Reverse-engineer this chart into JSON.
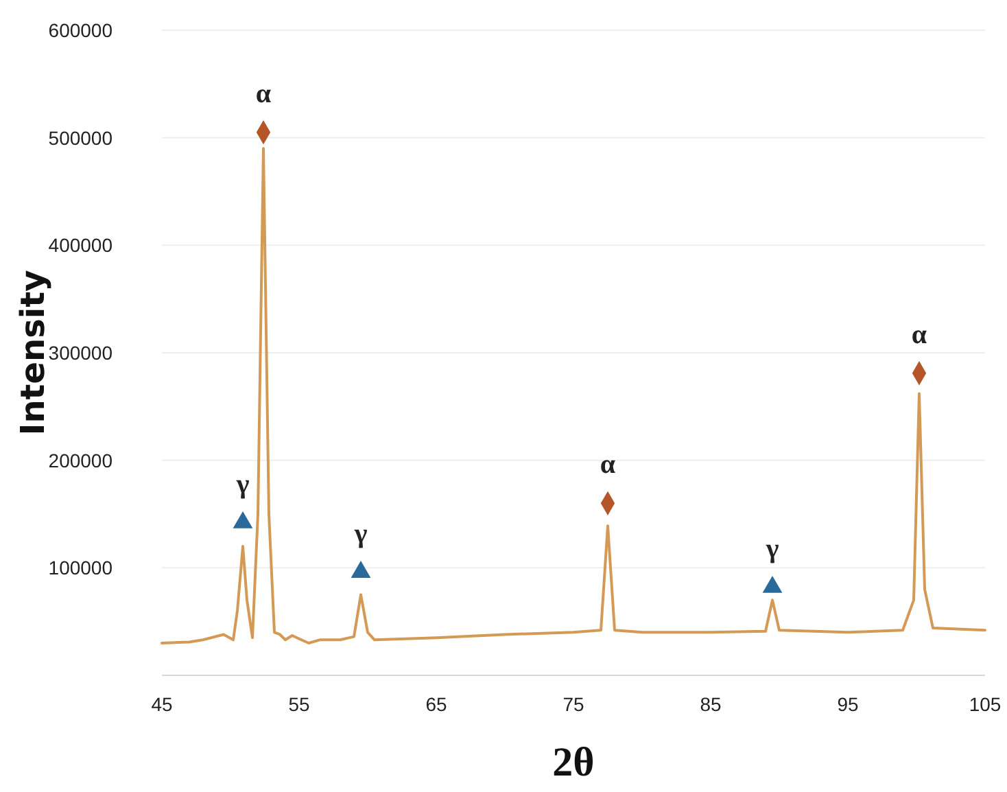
{
  "chart_data": {
    "type": "line",
    "xlabel": "2θ",
    "ylabel": "Intensity",
    "xlim": [
      45,
      105
    ],
    "xticks": [
      45,
      55,
      65,
      75,
      85,
      95,
      105
    ],
    "ylim": [
      0,
      600000
    ],
    "yticks": [
      100000,
      200000,
      300000,
      400000,
      500000,
      600000
    ],
    "grid": "y",
    "marker": "none",
    "line_style": "solid",
    "series": [
      {
        "color": "#d49a55",
        "x": [
          45,
          47,
          48,
          49.5,
          50.2,
          50.5,
          50.9,
          51.2,
          51.6,
          52,
          52.4,
          52.8,
          53.2,
          53.6,
          54,
          54.5,
          55,
          55.7,
          56.5,
          58,
          59,
          59.5,
          60,
          60.5,
          65,
          70,
          75,
          77,
          77.5,
          78,
          80,
          85,
          89,
          89.5,
          90,
          95,
          99,
          99.8,
          100.2,
          100.6,
          101.2,
          105
        ],
        "values": [
          30000,
          31000,
          33000,
          38000,
          33000,
          60000,
          120000,
          70000,
          35000,
          150000,
          490000,
          150000,
          40000,
          38000,
          33000,
          37000,
          34000,
          30000,
          33000,
          33000,
          36000,
          75000,
          40000,
          33000,
          35000,
          38000,
          40000,
          42000,
          139000,
          42000,
          40000,
          40000,
          41000,
          70000,
          42000,
          40000,
          42000,
          70000,
          262000,
          80000,
          44000,
          42000
        ]
      },
      {
        "type": "scatter",
        "marker": "diamond",
        "color": "#b5552a",
        "x": [
          52.4,
          77.5,
          100.2
        ],
        "values": [
          505000,
          160000,
          281000
        ]
      },
      {
        "type": "scatter",
        "marker": "triangle",
        "color": "#2a6a9a",
        "x": [
          50.9,
          59.5,
          89.5
        ],
        "values": [
          142000,
          96000,
          82000
        ]
      }
    ],
    "annotations": [
      {
        "text": "α",
        "x": 52.4,
        "y": 505000
      },
      {
        "text": "α",
        "x": 77.5,
        "y": 160000
      },
      {
        "text": "α",
        "x": 100.2,
        "y": 281000
      },
      {
        "text": "γ",
        "x": 50.9,
        "y": 142000
      },
      {
        "text": "γ",
        "x": 59.5,
        "y": 96000
      },
      {
        "text": "γ",
        "x": 89.5,
        "y": 82000
      }
    ]
  }
}
